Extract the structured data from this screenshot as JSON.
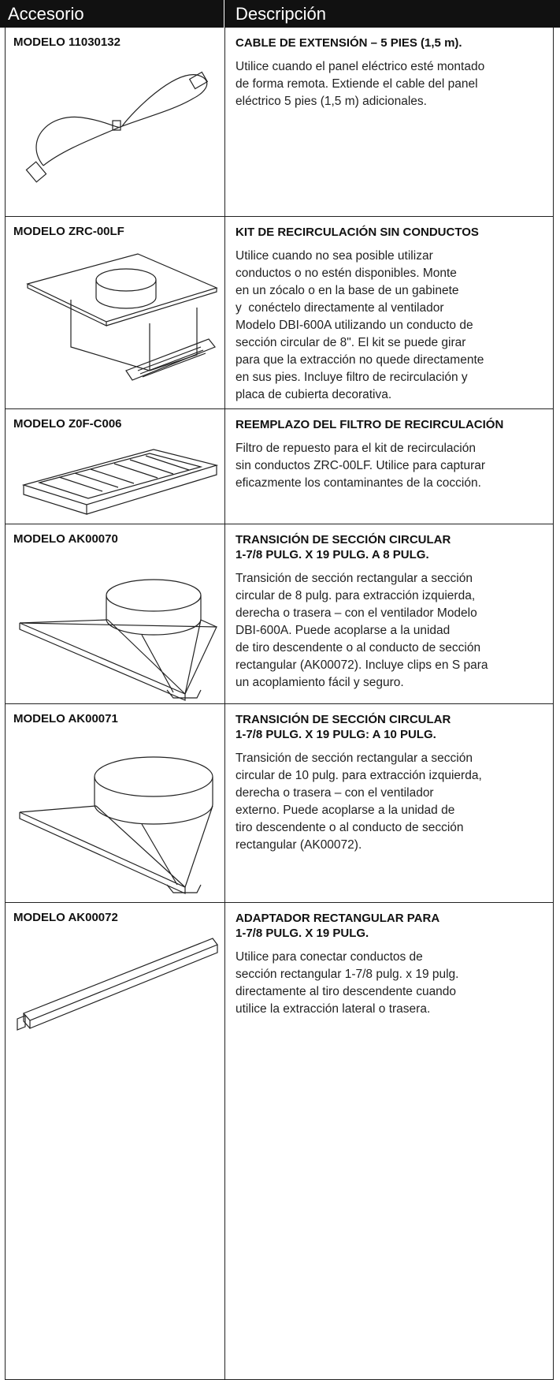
{
  "header": {
    "col1": "Accesorio",
    "col2": "Descripción"
  },
  "rows": [
    {
      "model": "MODELO 11030132",
      "title": [
        "CABLE DE EXTENSIÓN – 5 PIES (1,5 m)."
      ],
      "description": [
        "Utilice cuando el panel eléctrico esté montado",
        "de forma remota. Extiende el cable del panel",
        "eléctrico 5 pies (1,5 m) adicionales."
      ]
    },
    {
      "model": "MODELO ZRC-00LF",
      "title": [
        "KIT DE RECIRCULACIÓN SIN CONDUCTOS"
      ],
      "description": [
        "Utilice cuando no sea posible utilizar",
        "conductos o no estén disponibles. Monte",
        "en un zócalo o en la base de un gabinete",
        "y  conéctelo directamente al ventilador",
        "Modelo DBI-600A utilizando un conducto de",
        "sección circular de 8\". El kit se puede girar",
        "para que la extracción no quede directamente",
        "en sus pies. Incluye filtro de recirculación y",
        "placa de cubierta decorativa."
      ]
    },
    {
      "model": "MODELO Z0F-C006",
      "title": [
        "REEMPLAZO DEL FILTRO DE RECIRCULACIÓN"
      ],
      "description": [
        "Filtro de repuesto para el kit de recirculación",
        "sin conductos ZRC-00LF. Utilice para capturar",
        "eficazmente los contaminantes de la cocción."
      ]
    },
    {
      "model": "MODELO AK00070",
      "title": [
        "TRANSICIÓN DE SECCIÓN CIRCULAR",
        "1-7/8 PULG. X 19 PULG. A 8 PULG."
      ],
      "description": [
        "Transición de sección rectangular a sección",
        "circular de 8 pulg. para extracción izquierda,",
        "derecha o trasera – con el ventilador Modelo",
        "DBI-600A. Puede acoplarse a la unidad",
        "de tiro descendente o al conducto de sección",
        "rectangular (AK00072). Incluye clips en S para",
        "un acoplamiento fácil y seguro."
      ]
    },
    {
      "model": "MODELO AK00071",
      "title": [
        "TRANSICIÓN DE SECCIÓN CIRCULAR",
        "1-7/8 PULG. X 19 PULG: A 10 PULG."
      ],
      "description": [
        "Transición de sección rectangular a sección",
        "circular de 10 pulg. para extracción izquierda,",
        "derecha o trasera – con el ventilador",
        "externo. Puede acoplarse a la unidad de",
        "tiro descendente o al conducto de sección",
        "rectangular (AK00072)."
      ]
    },
    {
      "model": "MODELO AK00072",
      "title": [
        "ADAPTADOR RECTANGULAR PARA",
        "1-7/8 PULG. X 19 PULG."
      ],
      "description": [
        "Utilice para conectar conductos de",
        "sección rectangular 1-7/8 pulg. x 19 pulg.",
        "directamente al tiro descendente cuando",
        "utilice la extracción lateral o trasera."
      ]
    }
  ]
}
